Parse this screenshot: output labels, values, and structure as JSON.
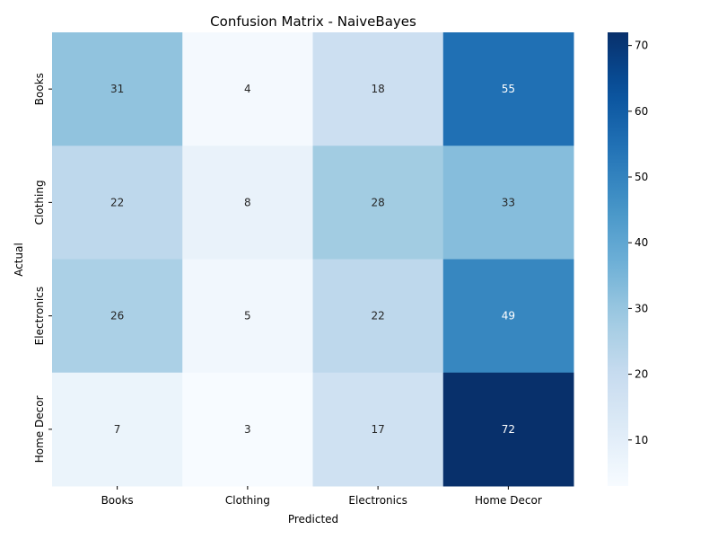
{
  "chart_data": {
    "type": "heatmap",
    "title": "Confusion Matrix - NaiveBayes",
    "xlabel": "Predicted",
    "ylabel": "Actual",
    "x_categories": [
      "Books",
      "Clothing",
      "Electronics",
      "Home Decor"
    ],
    "y_categories": [
      "Books",
      "Clothing",
      "Electronics",
      "Home Decor"
    ],
    "values": [
      [
        31,
        4,
        18,
        55
      ],
      [
        22,
        8,
        28,
        33
      ],
      [
        26,
        5,
        22,
        49
      ],
      [
        7,
        3,
        17,
        72
      ]
    ],
    "colormap": "Blues",
    "color_range": [
      3,
      72
    ],
    "colorbar_ticks": [
      10,
      20,
      30,
      40,
      50,
      60,
      70
    ],
    "annotations": true,
    "grid": false
  }
}
